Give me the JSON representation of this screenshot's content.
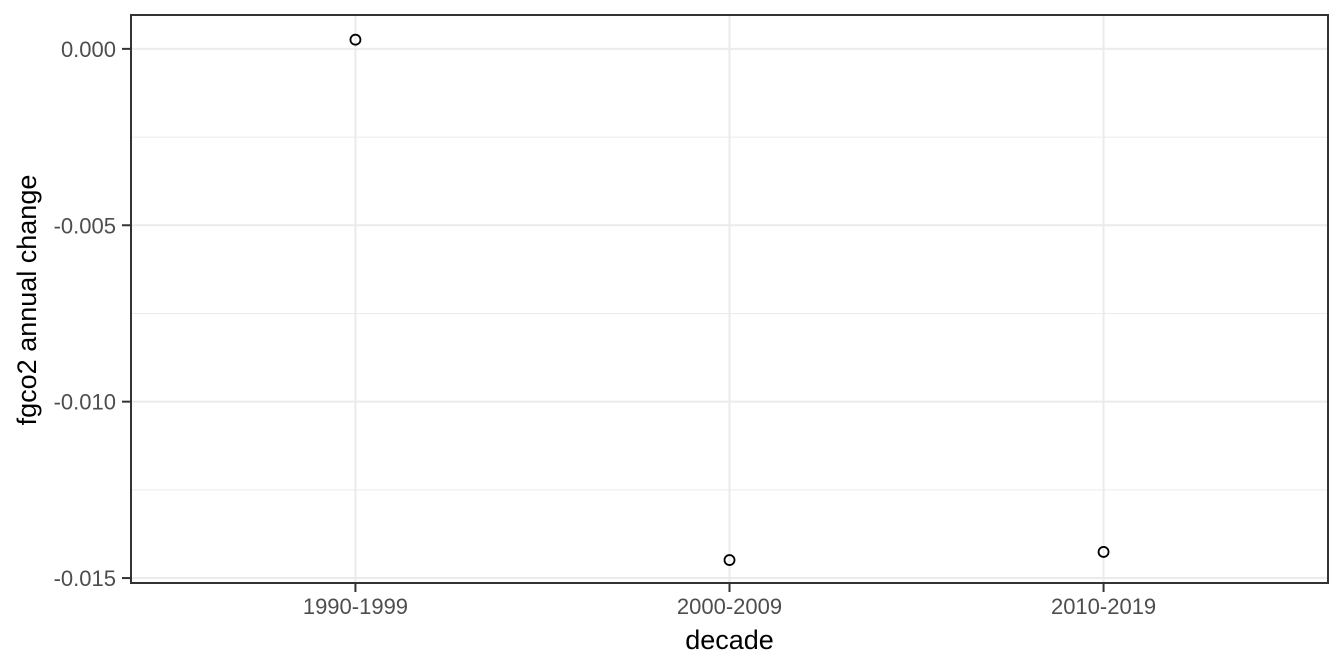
{
  "chart_data": {
    "type": "scatter",
    "title": "",
    "xlabel": "decade",
    "ylabel": "fgco2 annual change",
    "categories": [
      "1990-1999",
      "2000-2009",
      "2010-2019"
    ],
    "values": [
      0.00026,
      -0.01449,
      -0.01426
    ],
    "y_ticks": [
      0.0,
      -0.005,
      -0.01,
      -0.015
    ],
    "y_tick_labels": [
      "0.000",
      "-0.005",
      "-0.010",
      "-0.015"
    ],
    "y_minor_ticks": [
      -0.0025,
      -0.0075,
      -0.0125
    ],
    "ylim": [
      0.00096,
      -0.01514
    ],
    "grid": true,
    "legend": false,
    "marker": "open-circle",
    "style": {
      "background": "#FFFFFF",
      "panel_background": "#FFFFFF",
      "panel_border": "#333333",
      "grid_color": "#EBEBEB",
      "tick_color": "#333333",
      "tick_label_color": "#4D4D4D",
      "axis_title_color": "#000000",
      "point_color": "#000000"
    }
  }
}
